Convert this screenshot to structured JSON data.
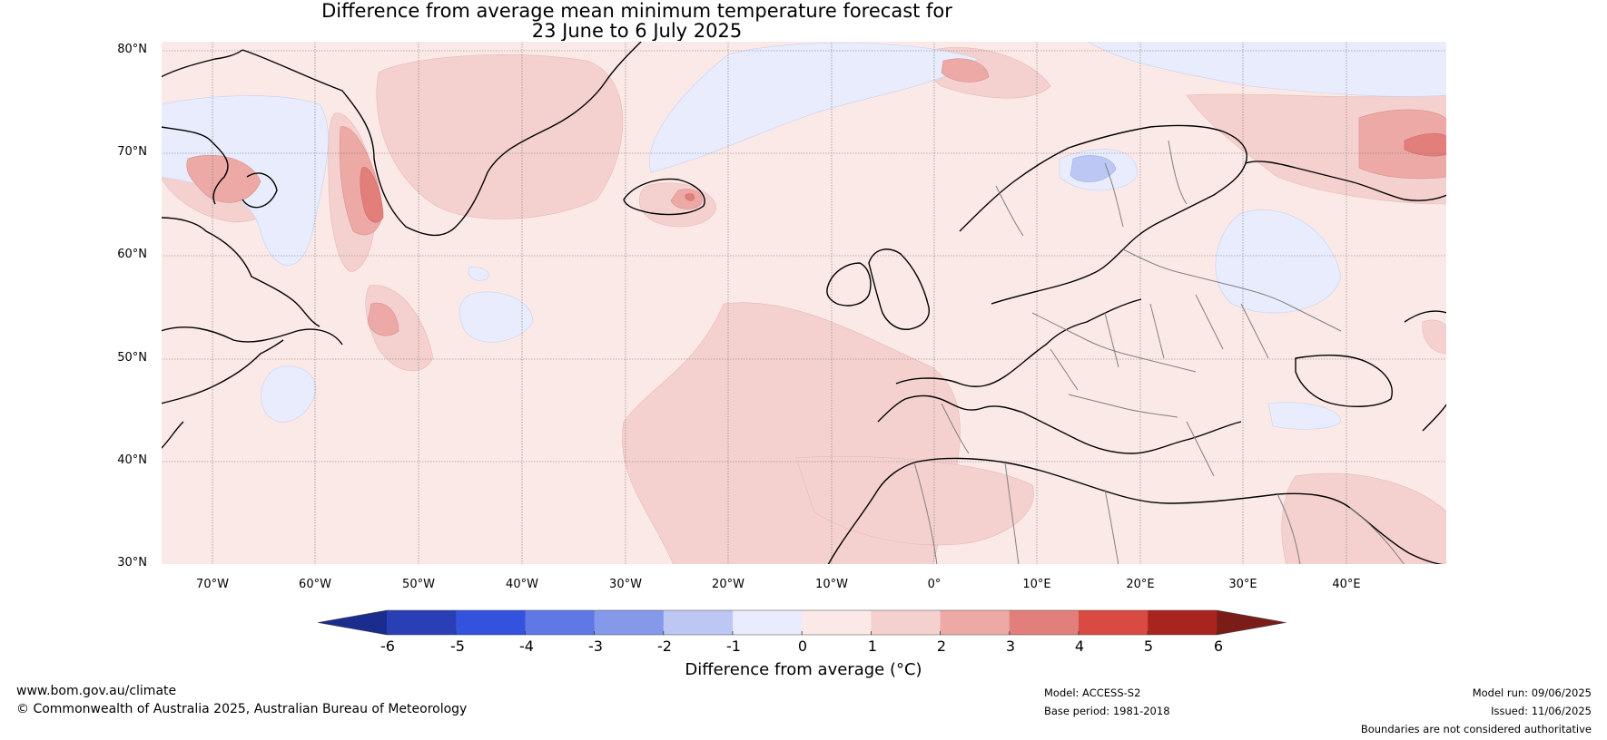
{
  "title": {
    "line1": "Difference from average mean minimum temperature forecast for",
    "line2": "23 June to 6 July 2025"
  },
  "map": {
    "lat_labels": [
      "80°N",
      "70°N",
      "60°N",
      "50°N",
      "40°N",
      "30°N"
    ],
    "lon_labels": [
      "70°W",
      "60°W",
      "50°W",
      "40°W",
      "30°W",
      "20°W",
      "10°W",
      "0°",
      "10°E",
      "20°E",
      "30°E",
      "40°E"
    ],
    "lat_range": [
      30,
      81
    ],
    "lon_range": [
      -75,
      50
    ],
    "background_color": "#fbe9e7"
  },
  "colorbar": {
    "title": "Difference from average (°C)",
    "tick_labels": [
      "-6",
      "-5",
      "-4",
      "-3",
      "-2",
      "-1",
      "0",
      "1",
      "2",
      "3",
      "4",
      "5",
      "6"
    ],
    "under_color": "#1a2c8e",
    "over_color": "#7a1c18",
    "colors": [
      "#2a3fb5",
      "#3352dd",
      "#5f78e6",
      "#8599ea",
      "#bcc7f4",
      "#e8ecfc",
      "#fbe9e7",
      "#f4d1cf",
      "#eca9a6",
      "#e37f7a",
      "#d84a42",
      "#a8251f"
    ]
  },
  "footer": {
    "website": "www.bom.gov.au/climate",
    "copyright": "© Commonwealth of Australia 2025, Australian Bureau of Meteorology",
    "model": "Model: ACCESS-S2",
    "base_period": "Base period: 1981-2018",
    "model_run": "Model run: 09/06/2025",
    "issued": "Issued: 11/06/2025",
    "disclaimer": "Boundaries are not considered authoritative"
  }
}
